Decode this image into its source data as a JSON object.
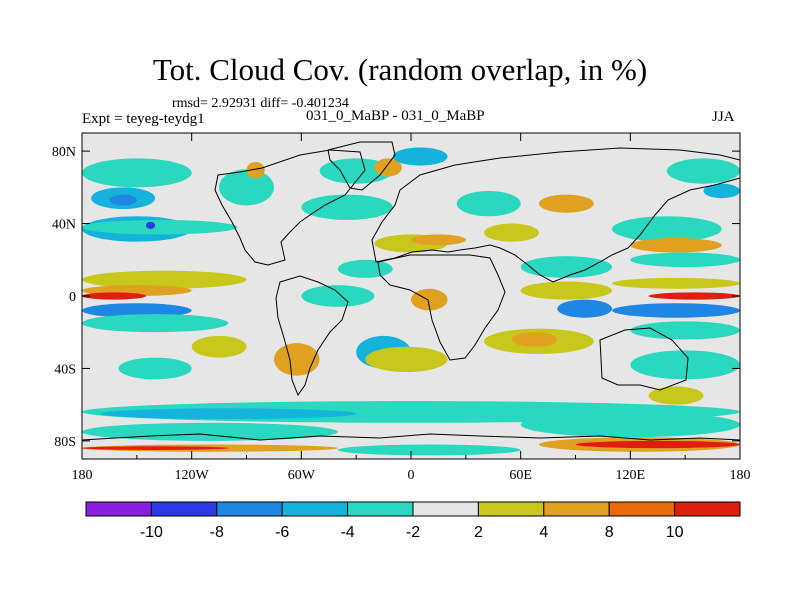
{
  "header": {
    "title": "Tot. Cloud Cov. (random overlap, in %)",
    "stats": "rmsd= 2.92931 diff= -0.401234",
    "experiment": "Expt = teyeg-teydg1",
    "subtitle": "031_0_MaBP - 031_0_MaBP",
    "season": "JJA"
  },
  "chart_data": {
    "type": "heatmap",
    "title": "Tot. Cloud Cov. (random overlap, in %)",
    "x_range": [
      -180,
      180
    ],
    "y_range": [
      -90,
      90
    ],
    "x_ticks": [
      {
        "value": -180,
        "label": "180"
      },
      {
        "value": -120,
        "label": "120W"
      },
      {
        "value": -60,
        "label": "60W"
      },
      {
        "value": 0,
        "label": "0"
      },
      {
        "value": 60,
        "label": "60E"
      },
      {
        "value": 120,
        "label": "120E"
      },
      {
        "value": 180,
        "label": "180"
      }
    ],
    "y_ticks": [
      {
        "value": 80,
        "label": "80N"
      },
      {
        "value": 40,
        "label": "40N"
      },
      {
        "value": 0,
        "label": "0"
      },
      {
        "value": -40,
        "label": "40S"
      },
      {
        "value": -80,
        "label": "80S"
      }
    ],
    "colorbar": {
      "bins": [
        {
          "color": "#8a1fe0"
        },
        {
          "color": "#2a3ae8"
        },
        {
          "color": "#1f86e2"
        },
        {
          "color": "#15b3dc"
        },
        {
          "color": "#2ad8bf"
        },
        {
          "color": "#e6e6e6"
        },
        {
          "color": "#c8c81c"
        },
        {
          "color": "#e0a020"
        },
        {
          "color": "#e86a0a"
        },
        {
          "color": "#e01e10"
        }
      ],
      "labels": [
        "-10",
        "-8",
        "-6",
        "-4",
        "-2",
        "2",
        "4",
        "8",
        "10"
      ]
    },
    "colors": {
      "background": "#e6e6e6",
      "neg_light": "#2ad8bf",
      "neg_mid": "#15b3dc",
      "neg_strong": "#1f86e2",
      "neg_deep": "#2a3ae8",
      "pos_light": "#c8c81c",
      "pos_mid": "#e0a020",
      "pos_strong": "#e86a0a",
      "pos_deep": "#e01e10"
    },
    "anomaly_regions": [
      {
        "class": "neg_light",
        "lon": [
          -180,
          -120
        ],
        "lat": [
          60,
          76
        ]
      },
      {
        "class": "neg_mid",
        "lon": [
          -175,
          -140
        ],
        "lat": [
          48,
          60
        ]
      },
      {
        "class": "neg_strong",
        "lon": [
          -165,
          -150
        ],
        "lat": [
          50,
          56
        ]
      },
      {
        "class": "neg_mid",
        "lon": [
          -180,
          -120
        ],
        "lat": [
          30,
          44
        ]
      },
      {
        "class": "neg_light",
        "lon": [
          -180,
          -95
        ],
        "lat": [
          34,
          42
        ]
      },
      {
        "class": "neg_deep",
        "lon": [
          -145,
          -140
        ],
        "lat": [
          37,
          41
        ]
      },
      {
        "class": "neg_light",
        "lon": [
          -105,
          -75
        ],
        "lat": [
          50,
          70
        ]
      },
      {
        "class": "pos_mid",
        "lon": [
          -90,
          -80
        ],
        "lat": [
          65,
          74
        ]
      },
      {
        "class": "neg_light",
        "lon": [
          -50,
          -10
        ],
        "lat": [
          62,
          76
        ]
      },
      {
        "class": "pos_mid",
        "lon": [
          -20,
          -5
        ],
        "lat": [
          66,
          76
        ]
      },
      {
        "class": "neg_mid",
        "lon": [
          -10,
          20
        ],
        "lat": [
          72,
          82
        ]
      },
      {
        "class": "neg_light",
        "lon": [
          -60,
          -10
        ],
        "lat": [
          42,
          56
        ]
      },
      {
        "class": "pos_light",
        "lon": [
          -20,
          20
        ],
        "lat": [
          24,
          34
        ]
      },
      {
        "class": "pos_mid",
        "lon": [
          0,
          30
        ],
        "lat": [
          28,
          34
        ]
      },
      {
        "class": "neg_light",
        "lon": [
          -40,
          -10
        ],
        "lat": [
          10,
          20
        ]
      },
      {
        "class": "pos_light",
        "lon": [
          -180,
          -90
        ],
        "lat": [
          4,
          14
        ]
      },
      {
        "class": "pos_mid",
        "lon": [
          -180,
          -120
        ],
        "lat": [
          0,
          6
        ]
      },
      {
        "class": "pos_deep",
        "lon": [
          -180,
          -145
        ],
        "lat": [
          -2,
          2
        ]
      },
      {
        "class": "neg_strong",
        "lon": [
          -180,
          -120
        ],
        "lat": [
          -12,
          -4
        ]
      },
      {
        "class": "neg_light",
        "lon": [
          -180,
          -100
        ],
        "lat": [
          -20,
          -10
        ]
      },
      {
        "class": "pos_light",
        "lon": [
          -120,
          -90
        ],
        "lat": [
          -34,
          -22
        ]
      },
      {
        "class": "neg_light",
        "lon": [
          -160,
          -120
        ],
        "lat": [
          -46,
          -34
        ]
      },
      {
        "class": "pos_mid",
        "lon": [
          -75,
          -50
        ],
        "lat": [
          -44,
          -26
        ]
      },
      {
        "class": "neg_light",
        "lon": [
          -60,
          -20
        ],
        "lat": [
          -6,
          6
        ]
      },
      {
        "class": "neg_mid",
        "lon": [
          -30,
          0
        ],
        "lat": [
          -40,
          -22
        ]
      },
      {
        "class": "pos_light",
        "lon": [
          -25,
          20
        ],
        "lat": [
          -42,
          -28
        ]
      },
      {
        "class": "pos_mid",
        "lon": [
          0,
          20
        ],
        "lat": [
          -8,
          4
        ]
      },
      {
        "class": "neg_light",
        "lon": [
          25,
          60
        ],
        "lat": [
          44,
          58
        ]
      },
      {
        "class": "pos_light",
        "lon": [
          40,
          70
        ],
        "lat": [
          30,
          40
        ]
      },
      {
        "class": "neg_light",
        "lon": [
          60,
          110
        ],
        "lat": [
          10,
          22
        ]
      },
      {
        "class": "pos_light",
        "lon": [
          60,
          110
        ],
        "lat": [
          -2,
          8
        ]
      },
      {
        "class": "neg_strong",
        "lon": [
          80,
          110
        ],
        "lat": [
          -12,
          -2
        ]
      },
      {
        "class": "pos_light",
        "lon": [
          40,
          100
        ],
        "lat": [
          -32,
          -18
        ]
      },
      {
        "class": "pos_mid",
        "lon": [
          55,
          80
        ],
        "lat": [
          -28,
          -20
        ]
      },
      {
        "class": "neg_light",
        "lon": [
          110,
          170
        ],
        "lat": [
          30,
          44
        ]
      },
      {
        "class": "pos_mid",
        "lon": [
          120,
          170
        ],
        "lat": [
          24,
          32
        ]
      },
      {
        "class": "neg_light",
        "lon": [
          120,
          180
        ],
        "lat": [
          16,
          24
        ]
      },
      {
        "class": "pos_light",
        "lon": [
          110,
          180
        ],
        "lat": [
          4,
          10
        ]
      },
      {
        "class": "pos_deep",
        "lon": [
          130,
          180
        ],
        "lat": [
          -2,
          2
        ]
      },
      {
        "class": "neg_strong",
        "lon": [
          110,
          180
        ],
        "lat": [
          -12,
          -4
        ]
      },
      {
        "class": "neg_light",
        "lon": [
          120,
          180
        ],
        "lat": [
          -24,
          -14
        ]
      },
      {
        "class": "neg_light",
        "lon": [
          120,
          180
        ],
        "lat": [
          -46,
          -30
        ]
      },
      {
        "class": "pos_light",
        "lon": [
          130,
          160
        ],
        "lat": [
          -60,
          -50
        ]
      },
      {
        "class": "neg_light",
        "lon": [
          140,
          180
        ],
        "lat": [
          62,
          76
        ]
      },
      {
        "class": "neg_mid",
        "lon": [
          160,
          180
        ],
        "lat": [
          54,
          62
        ]
      },
      {
        "class": "pos_mid",
        "lon": [
          70,
          100
        ],
        "lat": [
          46,
          56
        ]
      },
      {
        "class": "neg_light",
        "lon": [
          -180,
          180
        ],
        "lat": [
          -70,
          -58
        ]
      },
      {
        "class": "neg_mid",
        "lon": [
          -170,
          -30
        ],
        "lat": [
          -68,
          -62
        ]
      },
      {
        "class": "neg_light",
        "lon": [
          -180,
          -40
        ],
        "lat": [
          -80,
          -70
        ]
      },
      {
        "class": "pos_mid",
        "lon": [
          -180,
          -40
        ],
        "lat": [
          -86,
          -82
        ]
      },
      {
        "class": "pos_deep",
        "lon": [
          -180,
          -100
        ],
        "lat": [
          -85,
          -83
        ]
      },
      {
        "class": "neg_light",
        "lon": [
          60,
          180
        ],
        "lat": [
          -78,
          -64
        ]
      },
      {
        "class": "pos_mid",
        "lon": [
          70,
          180
        ],
        "lat": [
          -86,
          -78
        ]
      },
      {
        "class": "pos_deep",
        "lon": [
          90,
          180
        ],
        "lat": [
          -84,
          -80
        ]
      },
      {
        "class": "neg_light",
        "lon": [
          -40,
          60
        ],
        "lat": [
          -88,
          -82
        ]
      }
    ]
  }
}
